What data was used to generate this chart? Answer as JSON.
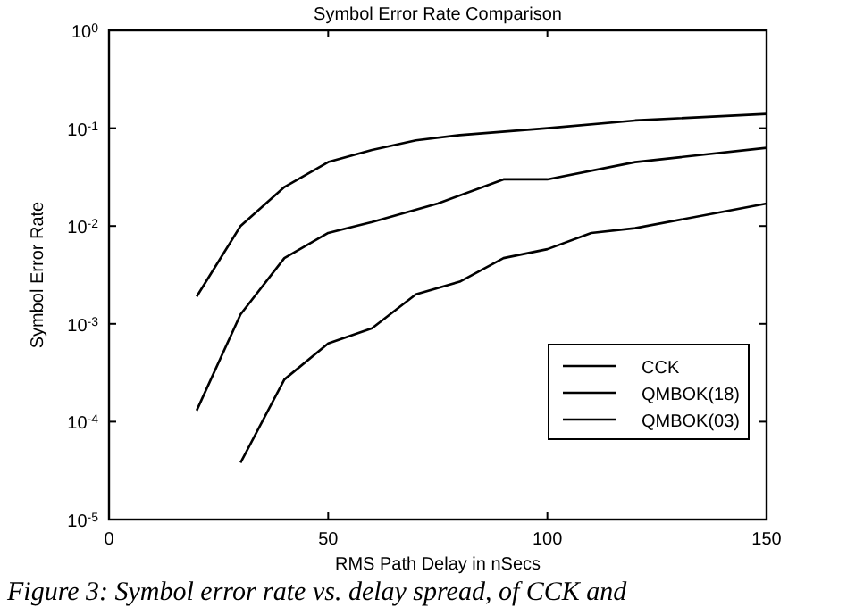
{
  "chart_data": {
    "type": "line",
    "title": "Symbol Error Rate Comparison",
    "xlabel": "RMS Path Delay in nSecs",
    "ylabel": "Symbol Error Rate",
    "log": "y",
    "xlim": [
      0,
      150
    ],
    "xticks": [
      0,
      50,
      100,
      150
    ],
    "ylim": [
      1e-05,
      1
    ],
    "yticks": [
      {
        "value": 1e-05,
        "label": "10$^{-5}$"
      },
      {
        "value": 0.0001,
        "label": "10$^{-4}$"
      },
      {
        "value": 0.001,
        "label": "10$^{-3}$"
      },
      {
        "value": 0.01,
        "label": "10$^{-2}$"
      },
      {
        "value": 0.1,
        "label": "10$^{-1}$"
      },
      {
        "value": 1,
        "label": "10$^{0}$"
      }
    ],
    "grid": false,
    "legend": "bottom right",
    "marker": "none",
    "line_style": "solid",
    "series": [
      {
        "name": "CCK",
        "color": "#000000",
        "x": [
          20,
          30,
          40,
          50,
          60,
          70,
          80,
          100,
          120,
          150
        ],
        "values": [
          0.0019,
          0.01,
          0.025,
          0.045,
          0.06,
          0.075,
          0.085,
          0.1,
          0.12,
          0.14
        ]
      },
      {
        "name": "QMBOK(18)",
        "color": "#000000",
        "x": [
          20,
          30,
          40,
          50,
          60,
          75,
          90,
          100,
          120,
          150
        ],
        "values": [
          0.00013,
          0.00125,
          0.0047,
          0.0085,
          0.011,
          0.017,
          0.03,
          0.03,
          0.045,
          0.063
        ]
      },
      {
        "name": "QMBOK(03)",
        "color": "#000000",
        "x": [
          30,
          40,
          50,
          60,
          70,
          80,
          90,
          100,
          110,
          120,
          140,
          150
        ],
        "values": [
          3.8e-05,
          0.00027,
          0.00063,
          0.0009,
          0.002,
          0.0027,
          0.0047,
          0.0058,
          0.0085,
          0.0095,
          0.014,
          0.017
        ]
      }
    ],
    "annotations": [
      "Figure 3: Symbol error rate vs. delay spread, of CCK and"
    ]
  }
}
